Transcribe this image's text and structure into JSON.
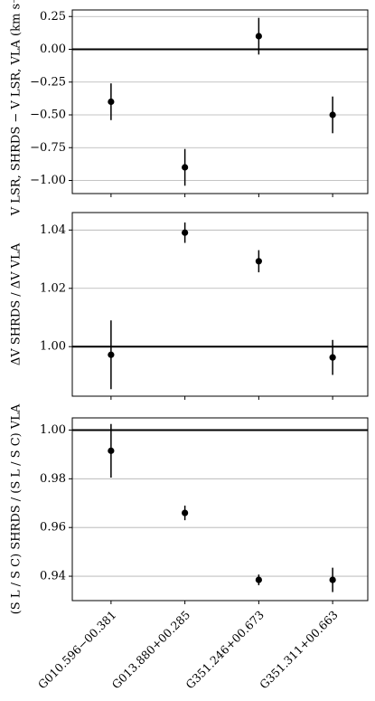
{
  "chart_data": [
    {
      "type": "errorbar",
      "y_label": "V LSR, SHRDS − V LSR, VLA (km s⁻¹)",
      "categories": [
        null,
        null,
        null,
        null
      ],
      "values": [
        -0.4,
        -0.9,
        0.1,
        -0.5
      ],
      "errors": [
        0.14,
        0.14,
        0.14,
        0.14
      ],
      "ylim": [
        -1.1,
        0.3
      ],
      "yticks": [
        {
          "value": 0.25,
          "label": "0.25"
        },
        {
          "value": 0,
          "label": "0.00"
        },
        {
          "value": -0.25,
          "label": "−0.25"
        },
        {
          "value": -0.5,
          "label": "−0.50"
        },
        {
          "value": -0.75,
          "label": "−0.75"
        },
        {
          "value": -1.0,
          "label": "−1.00"
        }
      ],
      "reference_line": 0,
      "grid": true,
      "color": "#000000"
    },
    {
      "type": "errorbar",
      "y_label": "ΔV SHRDS / ΔV VLA",
      "categories": [
        null,
        null,
        null,
        null
      ],
      "values": [
        0.9972,
        1.0391,
        1.0293,
        0.9963
      ],
      "errors": [
        0.0118,
        0.0035,
        0.0038,
        0.006
      ],
      "ylim": [
        0.983,
        1.046
      ],
      "yticks": [
        {
          "value": 1,
          "label": "1.00"
        },
        1.02,
        1.04
      ],
      "reference_line": 1,
      "grid": true,
      "color": "#000000"
    },
    {
      "type": "errorbar",
      "y_label": "(S L / S C) SHRDS / (S L / S C) VLA",
      "categories": [
        "G010.596−00.381",
        "G013.880+00.285",
        "G351.246+00.673",
        "G351.311+00.663"
      ],
      "values": [
        0.9915,
        0.966,
        0.9385,
        0.9385
      ],
      "errors": [
        0.011,
        0.003,
        0.0022,
        0.005
      ],
      "ylim": [
        0.93,
        1.005
      ],
      "yticks": [
        {
          "value": 1,
          "label": "1.00"
        },
        0.98,
        0.96,
        0.94
      ],
      "reference_line": 1,
      "grid": true,
      "color": "#000000"
    }
  ]
}
